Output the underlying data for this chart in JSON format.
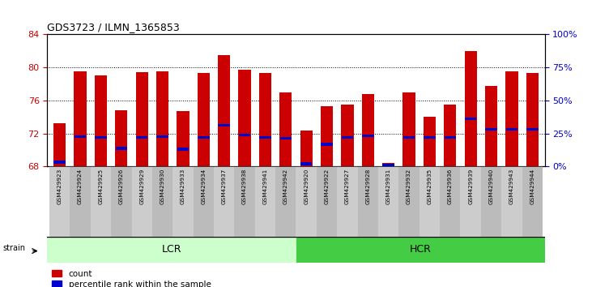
{
  "title": "GDS3723 / ILMN_1365853",
  "samples": [
    "GSM429923",
    "GSM429924",
    "GSM429925",
    "GSM429926",
    "GSM429929",
    "GSM429930",
    "GSM429933",
    "GSM429934",
    "GSM429937",
    "GSM429938",
    "GSM429941",
    "GSM429942",
    "GSM429920",
    "GSM429922",
    "GSM429927",
    "GSM429928",
    "GSM429931",
    "GSM429932",
    "GSM429935",
    "GSM429936",
    "GSM429939",
    "GSM429940",
    "GSM429943",
    "GSM429944"
  ],
  "bar_tops": [
    73.2,
    79.5,
    79.0,
    74.8,
    79.4,
    79.5,
    74.7,
    79.3,
    81.5,
    79.7,
    79.3,
    77.0,
    72.4,
    75.3,
    75.5,
    76.8,
    68.4,
    77.0,
    74.0,
    75.5,
    82.0,
    77.8,
    79.5,
    79.3
  ],
  "blue_positions": [
    68.5,
    71.6,
    71.5,
    70.2,
    71.5,
    71.6,
    70.1,
    71.5,
    73.0,
    71.8,
    71.5,
    71.4,
    68.3,
    70.7,
    71.5,
    71.7,
    68.2,
    71.5,
    71.5,
    71.5,
    73.8,
    72.5,
    72.5,
    72.5
  ],
  "bar_color": "#cc0000",
  "blue_color": "#0000cc",
  "ylim_left": [
    68,
    84
  ],
  "ylim_right": [
    0,
    100
  ],
  "yticks_left": [
    68,
    72,
    76,
    80,
    84
  ],
  "yticks_right": [
    0,
    25,
    50,
    75,
    100
  ],
  "ytick_labels_right": [
    "0%",
    "25%",
    "50%",
    "75%",
    "100%"
  ],
  "groups": [
    {
      "label": "LCR",
      "start": 0,
      "end": 12,
      "color": "#ccffcc"
    },
    {
      "label": "HCR",
      "start": 12,
      "end": 24,
      "color": "#44cc44"
    }
  ],
  "strain_label": "strain",
  "legend": [
    {
      "label": "count",
      "color": "#cc0000"
    },
    {
      "label": "percentile rank within the sample",
      "color": "#0000cc"
    }
  ],
  "background_color": "#ffffff",
  "bar_width": 0.6,
  "tick_color_left": "#cc0000",
  "tick_color_right": "#0000cc",
  "xticklabel_bg_colors": [
    "#cccccc",
    "#bbbbbb"
  ]
}
